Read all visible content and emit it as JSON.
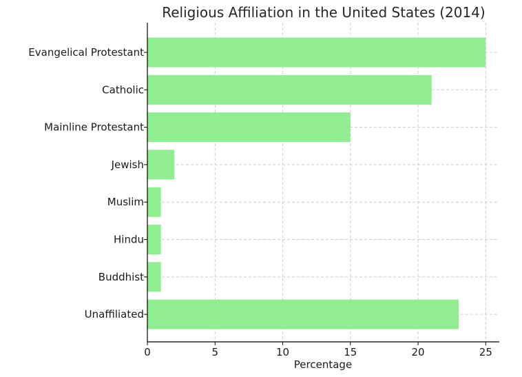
{
  "chart_data": {
    "type": "bar",
    "orientation": "horizontal",
    "title": "Religious Affiliation in the United States (2014)",
    "xlabel": "Percentage",
    "ylabel": "",
    "categories": [
      "Evangelical Protestant",
      "Catholic",
      "Mainline Protestant",
      "Jewish",
      "Muslim",
      "Hindu",
      "Buddhist",
      "Unaffiliated"
    ],
    "values": [
      25,
      21,
      15,
      2,
      1,
      1,
      1,
      23
    ],
    "xlim": [
      0,
      26
    ],
    "xticks": [
      "0",
      "5",
      "10",
      "15",
      "20",
      "25"
    ],
    "grid": true,
    "bar_color": "#90ee90"
  }
}
